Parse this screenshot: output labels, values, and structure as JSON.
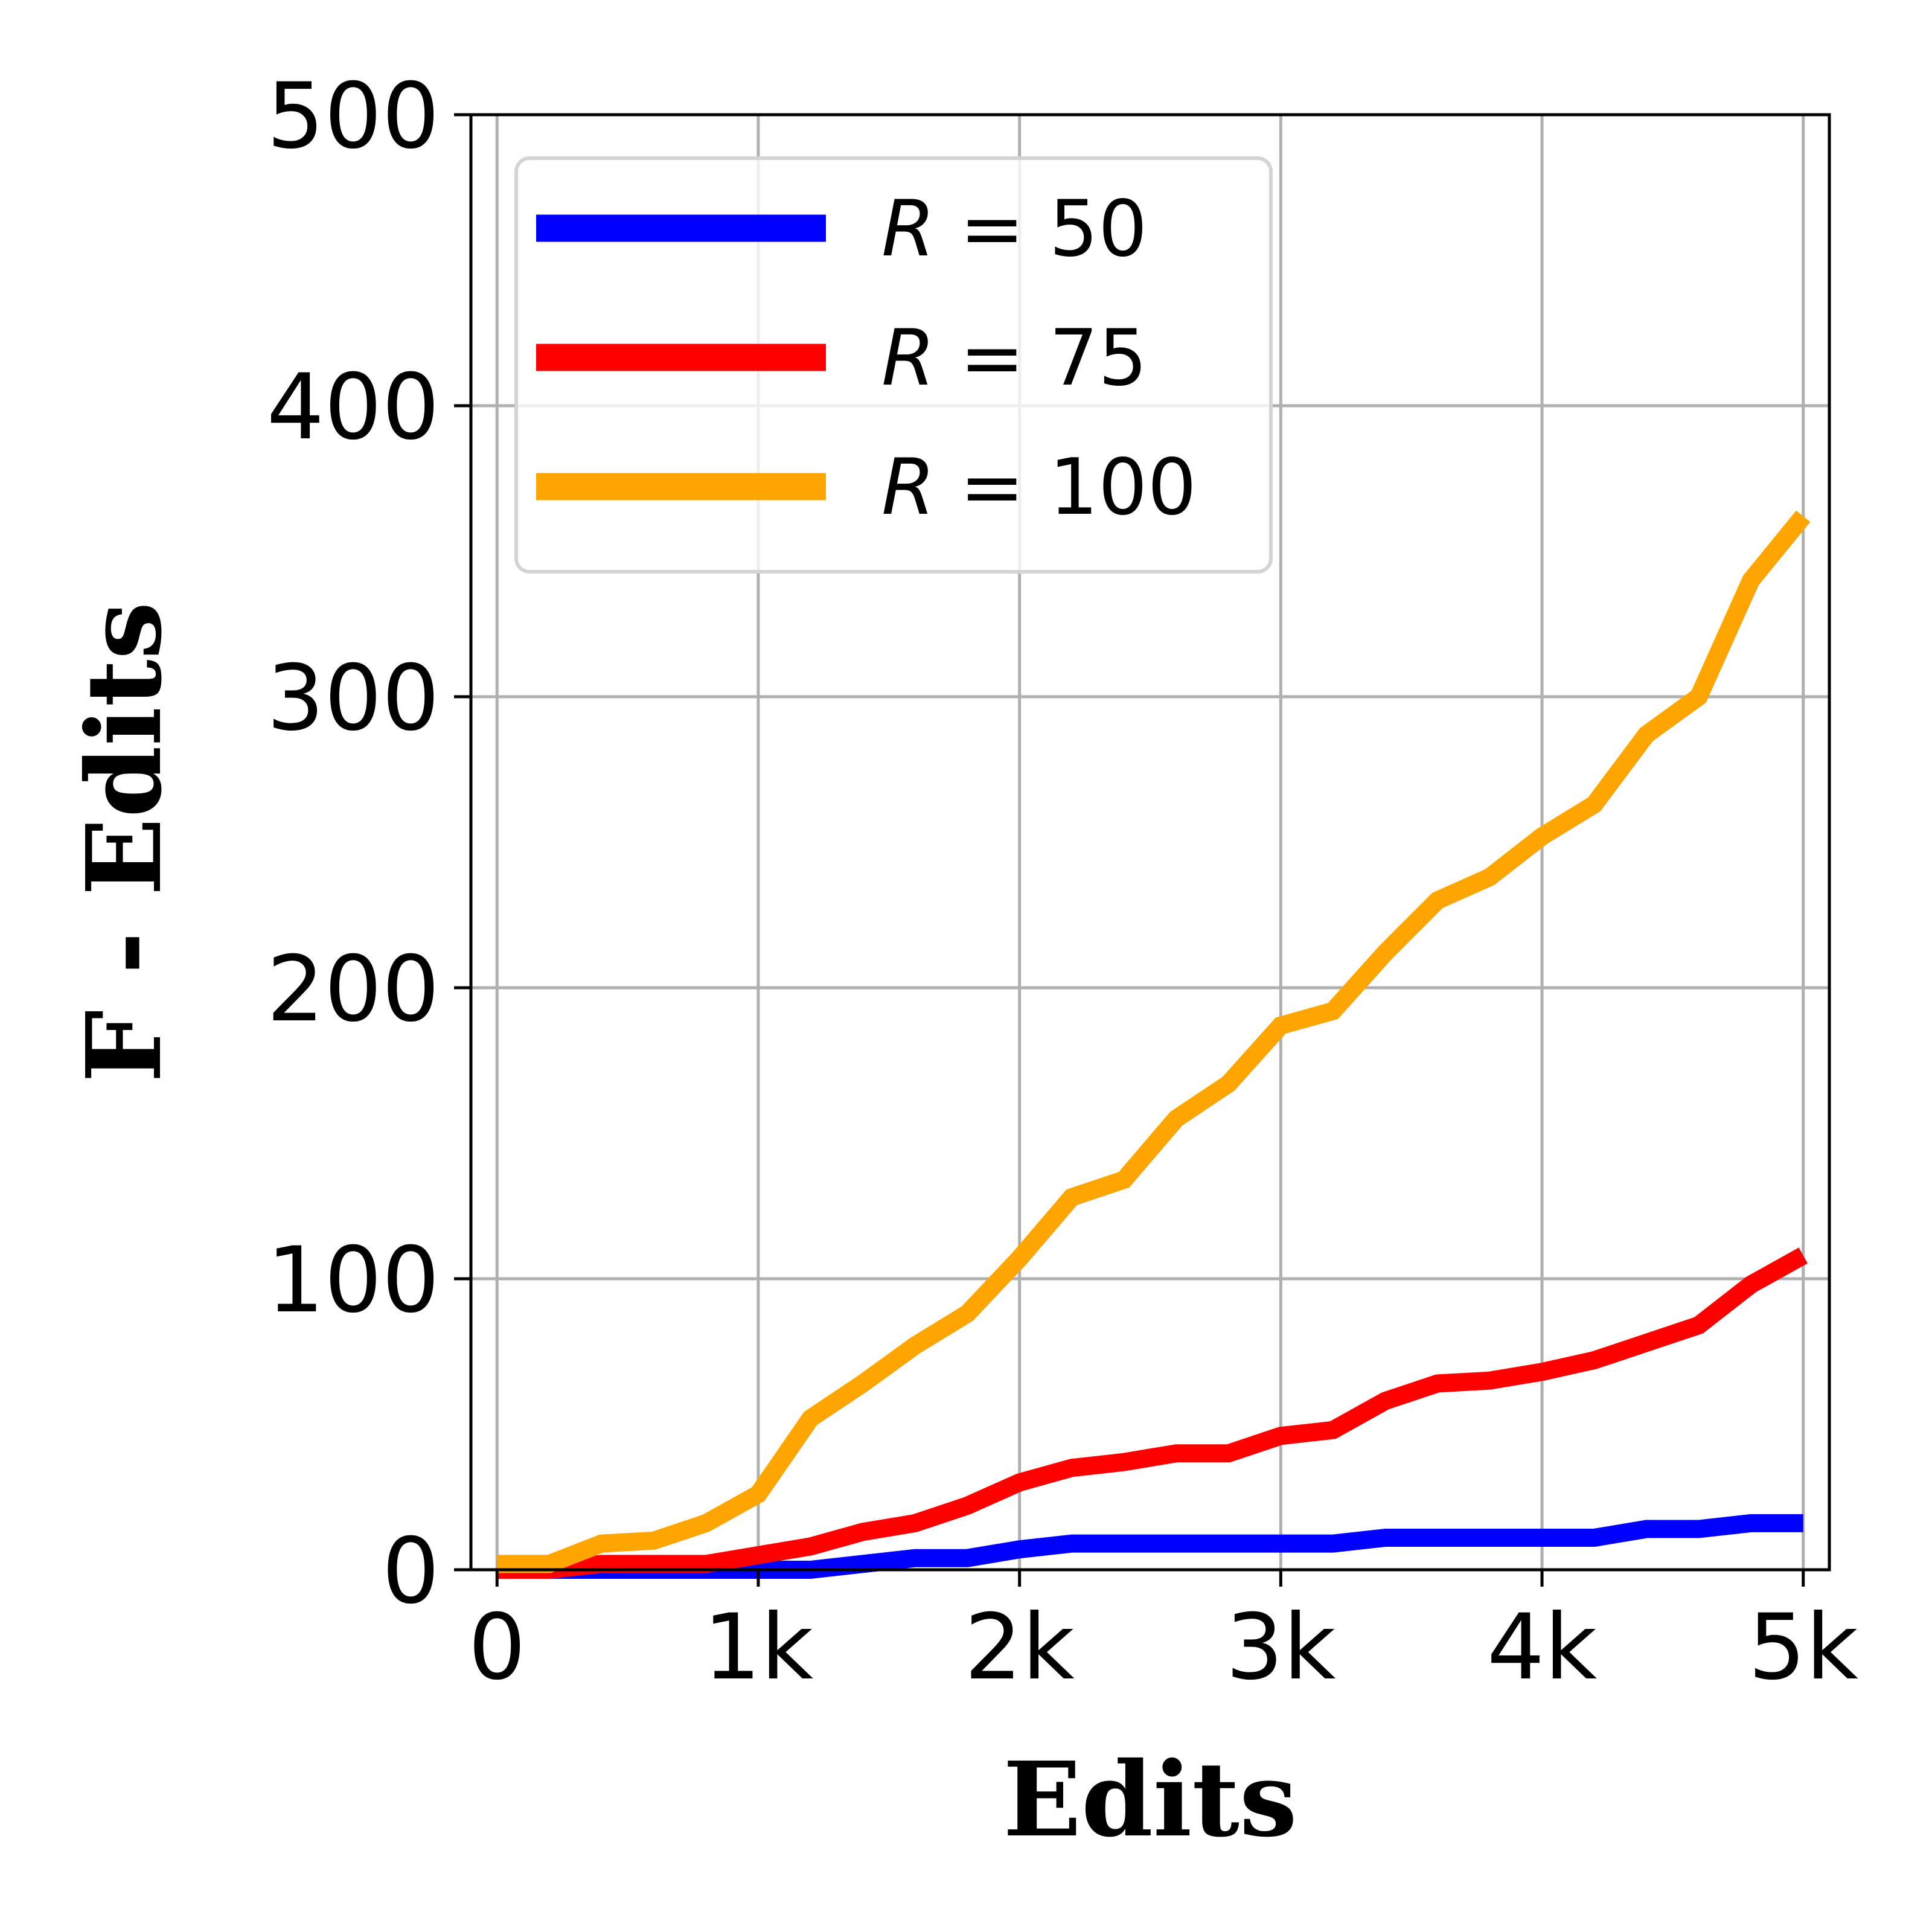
{
  "chart_data": {
    "type": "line",
    "title": "",
    "xlabel": "Edits",
    "ylabel": "F - Edits",
    "xlim": [
      -100,
      5100
    ],
    "ylim": [
      0,
      500
    ],
    "x_ticks": [
      0,
      1000,
      2000,
      3000,
      4000,
      5000
    ],
    "x_tick_labels": [
      "0",
      "1k",
      "2k",
      "3k",
      "4k",
      "5k"
    ],
    "y_ticks": [
      0,
      100,
      200,
      300,
      400,
      500
    ],
    "y_tick_labels": [
      "0",
      "100",
      "200",
      "300",
      "400",
      "500"
    ],
    "grid": true,
    "legend_position": "upper left",
    "x": [
      0,
      200,
      400,
      600,
      800,
      1000,
      1200,
      1400,
      1600,
      1800,
      2000,
      2200,
      2400,
      2600,
      2800,
      3000,
      3200,
      3400,
      3600,
      3800,
      4000,
      4200,
      4400,
      4600,
      4800,
      5000
    ],
    "series": [
      {
        "name": "R = 50",
        "legend_symbol": "R",
        "legend_value": "= 50",
        "color": "#0000ff",
        "values": [
          0,
          0,
          0,
          0,
          0,
          0,
          0,
          2,
          4,
          4,
          7,
          9,
          9,
          9,
          9,
          9,
          9,
          11,
          11,
          11,
          11,
          11,
          14,
          14,
          16,
          16
        ]
      },
      {
        "name": "R = 75",
        "legend_symbol": "R",
        "legend_value": "= 75",
        "color": "#ff0000",
        "values": [
          0,
          0,
          2,
          2,
          2,
          5,
          8,
          13,
          16,
          22,
          30,
          35,
          37,
          40,
          40,
          46,
          48,
          58,
          64,
          65,
          68,
          72,
          78,
          84,
          98,
          108
        ]
      },
      {
        "name": "R = 100",
        "legend_symbol": "R",
        "legend_value": "= 100",
        "color": "#ffa500",
        "values": [
          2,
          2,
          9,
          10,
          16,
          26,
          52,
          64,
          77,
          88,
          107,
          128,
          134,
          155,
          167,
          187,
          192,
          212,
          230,
          238,
          252,
          263,
          287,
          300,
          340,
          362
        ]
      }
    ]
  }
}
